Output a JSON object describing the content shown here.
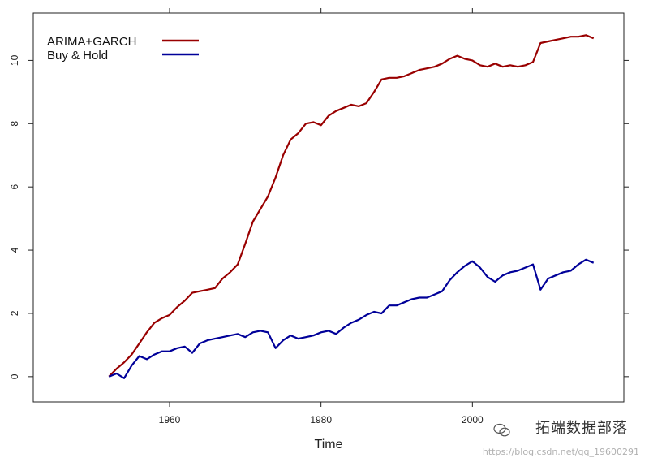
{
  "chart_data": {
    "type": "line",
    "title": "",
    "xlabel": "Time",
    "ylabel": "",
    "xlim": [
      1942,
      2020
    ],
    "ylim": [
      -0.8,
      11.5
    ],
    "xticks": [
      1960,
      1980,
      2000
    ],
    "yticks": [
      0,
      2,
      4,
      6,
      8,
      10
    ],
    "legend_position": "top-left",
    "grid": false,
    "series": [
      {
        "name": "ARIMA+GARCH",
        "color": "#990000",
        "x": [
          1952,
          1953,
          1954,
          1955,
          1956,
          1957,
          1958,
          1959,
          1960,
          1961,
          1962,
          1963,
          1964,
          1965,
          1966,
          1967,
          1968,
          1969,
          1970,
          1971,
          1972,
          1973,
          1974,
          1975,
          1976,
          1977,
          1978,
          1979,
          1980,
          1981,
          1982,
          1983,
          1984,
          1985,
          1986,
          1987,
          1988,
          1989,
          1990,
          1991,
          1992,
          1993,
          1994,
          1995,
          1996,
          1997,
          1998,
          1999,
          2000,
          2001,
          2002,
          2003,
          2004,
          2005,
          2006,
          2007,
          2008,
          2009,
          2010,
          2011,
          2012,
          2013,
          2014,
          2015,
          2016
        ],
        "values": [
          0.0,
          0.25,
          0.45,
          0.7,
          1.05,
          1.4,
          1.7,
          1.85,
          1.95,
          2.2,
          2.4,
          2.65,
          2.7,
          2.75,
          2.8,
          3.1,
          3.3,
          3.55,
          4.2,
          4.9,
          5.3,
          5.7,
          6.3,
          7.0,
          7.5,
          7.7,
          8.0,
          8.05,
          7.95,
          8.25,
          8.4,
          8.5,
          8.6,
          8.55,
          8.65,
          9.0,
          9.4,
          9.45,
          9.45,
          9.5,
          9.6,
          9.7,
          9.75,
          9.8,
          9.9,
          10.05,
          10.15,
          10.05,
          10.0,
          9.85,
          9.8,
          9.9,
          9.8,
          9.85,
          9.8,
          9.85,
          9.95,
          10.55,
          10.6,
          10.65,
          10.7,
          10.75,
          10.75,
          10.8,
          10.7
        ]
      },
      {
        "name": "Buy & Hold",
        "color": "#000099",
        "x": [
          1952,
          1953,
          1954,
          1955,
          1956,
          1957,
          1958,
          1959,
          1960,
          1961,
          1962,
          1963,
          1964,
          1965,
          1966,
          1967,
          1968,
          1969,
          1970,
          1971,
          1972,
          1973,
          1974,
          1975,
          1976,
          1977,
          1978,
          1979,
          1980,
          1981,
          1982,
          1983,
          1984,
          1985,
          1986,
          1987,
          1988,
          1989,
          1990,
          1991,
          1992,
          1993,
          1994,
          1995,
          1996,
          1997,
          1998,
          1999,
          2000,
          2001,
          2002,
          2003,
          2004,
          2005,
          2006,
          2007,
          2008,
          2009,
          2010,
          2011,
          2012,
          2013,
          2014,
          2015,
          2016
        ],
        "values": [
          0.0,
          0.1,
          -0.05,
          0.35,
          0.65,
          0.55,
          0.7,
          0.8,
          0.8,
          0.9,
          0.95,
          0.75,
          1.05,
          1.15,
          1.2,
          1.25,
          1.3,
          1.35,
          1.25,
          1.4,
          1.45,
          1.4,
          0.9,
          1.15,
          1.3,
          1.2,
          1.25,
          1.3,
          1.4,
          1.45,
          1.35,
          1.55,
          1.7,
          1.8,
          1.95,
          2.05,
          2.0,
          2.25,
          2.25,
          2.35,
          2.45,
          2.5,
          2.5,
          2.6,
          2.7,
          3.05,
          3.3,
          3.5,
          3.65,
          3.45,
          3.15,
          3.0,
          3.2,
          3.3,
          3.35,
          3.45,
          3.55,
          2.75,
          3.1,
          3.2,
          3.3,
          3.35,
          3.55,
          3.7,
          3.6
        ]
      }
    ]
  },
  "watermark": {
    "brand": "拓端数据部落",
    "url": "https://blog.csdn.net/qq_19600291"
  }
}
